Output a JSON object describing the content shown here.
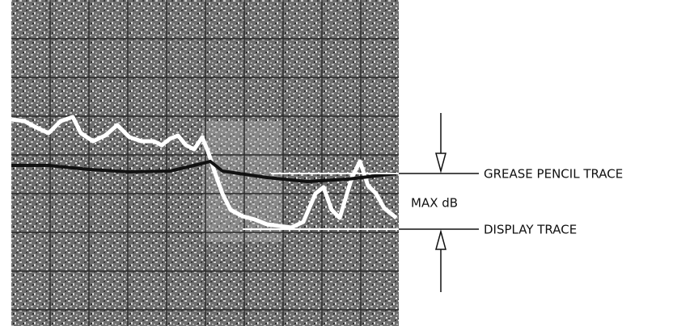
{
  "labels": {
    "grease_pencil_trace": "GREASE PENCIL TRACE",
    "max_db": "MAX dB",
    "display_trace": "DISPLAY TRACE"
  }
}
